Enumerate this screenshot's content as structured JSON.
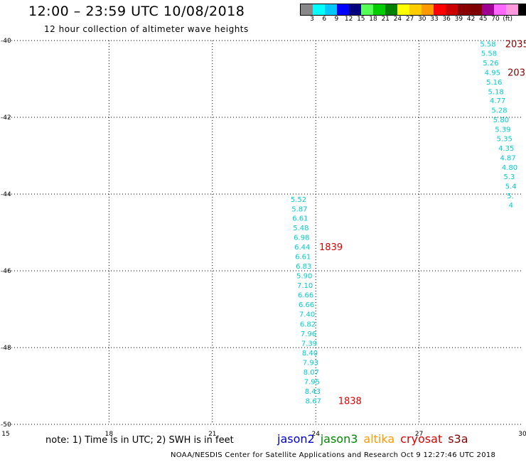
{
  "header": {
    "title": "12:00 – 23:59 UTC 10/08/2018",
    "subtitle": "12 hour collection of altimeter wave heights"
  },
  "legend": {
    "colors": [
      "#888888",
      "#00ffff",
      "#00c8ff",
      "#0000ff",
      "#00007f",
      "#55ff55",
      "#00cc00",
      "#008000",
      "#ffff00",
      "#ffcc00",
      "#ff9900",
      "#ff0000",
      "#cc0000",
      "#880000",
      "#800000",
      "#a00090",
      "#ff66ff",
      "#ff99dd",
      "#000000"
    ],
    "labels": [
      "3",
      "6",
      "9",
      "12",
      "15",
      "18",
      "21",
      "24",
      "27",
      "30",
      "33",
      "36",
      "39",
      "42",
      "45",
      "70",
      "(ft)"
    ]
  },
  "footer": {
    "note": "note:  1) Time is in UTC;  2) SWH is in feet",
    "credit": "NOAA/NESDIS Center for Satellite Applications and Research    Oct  9 12:27:46 UTC 2018",
    "satellites": [
      {
        "name": "jason2",
        "color": "#0000cc"
      },
      {
        "name": "jason3",
        "color": "#008800"
      },
      {
        "name": "altika",
        "color": "#ff9900"
      },
      {
        "name": "cryosat",
        "color": "#dd0000"
      },
      {
        "name": "s3a",
        "color": "#880000"
      }
    ]
  },
  "chart_data": {
    "type": "scatter",
    "xlim": [
      15,
      30
    ],
    "ylim": [
      -50,
      -40
    ],
    "x_ticks": [
      15,
      18,
      21,
      24,
      27,
      30
    ],
    "y_ticks": [
      -40,
      -42,
      -44,
      -46,
      -48,
      -50
    ],
    "x_tick_labels": [
      "15",
      "18",
      "21",
      "24",
      "27",
      "30"
    ],
    "y_tick_labels": [
      "-40",
      "-42",
      "-44",
      "-46",
      "-48",
      "-50"
    ],
    "grid": true,
    "series": [
      {
        "color": "#00cccc",
        "points": [
          {
            "x": 23.27,
            "y": -44.13,
            "label": "5.52"
          },
          {
            "x": 23.3,
            "y": -44.38,
            "label": "5.87"
          },
          {
            "x": 23.32,
            "y": -44.62,
            "label": "6.61"
          },
          {
            "x": 23.34,
            "y": -44.87,
            "label": "5.48"
          },
          {
            "x": 23.36,
            "y": -45.12,
            "label": "6.98"
          },
          {
            "x": 23.38,
            "y": -45.37,
            "label": "6.44"
          },
          {
            "x": 23.4,
            "y": -45.62,
            "label": "6.61"
          },
          {
            "x": 23.42,
            "y": -45.87,
            "label": "6.83"
          },
          {
            "x": 23.44,
            "y": -46.12,
            "label": "5.90"
          },
          {
            "x": 23.46,
            "y": -46.37,
            "label": "7.10"
          },
          {
            "x": 23.48,
            "y": -46.62,
            "label": "6.66"
          },
          {
            "x": 23.5,
            "y": -46.87,
            "label": "6.66"
          },
          {
            "x": 23.52,
            "y": -47.12,
            "label": "7.40"
          },
          {
            "x": 23.54,
            "y": -47.38,
            "label": "6.82"
          },
          {
            "x": 23.56,
            "y": -47.63,
            "label": "7.96"
          },
          {
            "x": 23.58,
            "y": -47.88,
            "label": "7.39"
          },
          {
            "x": 23.6,
            "y": -48.13,
            "label": "8.40"
          },
          {
            "x": 23.62,
            "y": -48.38,
            "label": "7.93"
          },
          {
            "x": 23.64,
            "y": -48.63,
            "label": "8.07"
          },
          {
            "x": 23.66,
            "y": -48.88,
            "label": "7.95"
          },
          {
            "x": 23.68,
            "y": -49.13,
            "label": "8.43"
          },
          {
            "x": 23.7,
            "y": -49.38,
            "label": "8.67"
          },
          {
            "x": 28.77,
            "y": -40.08,
            "label": "5.58"
          },
          {
            "x": 28.8,
            "y": -40.32,
            "label": "5.58"
          },
          {
            "x": 28.85,
            "y": -40.57,
            "label": "5.26"
          },
          {
            "x": 28.9,
            "y": -40.82,
            "label": "4.95"
          },
          {
            "x": 28.95,
            "y": -41.07,
            "label": "5.16"
          },
          {
            "x": 29.0,
            "y": -41.32,
            "label": "5.18"
          },
          {
            "x": 29.05,
            "y": -41.56,
            "label": "4.77"
          },
          {
            "x": 29.1,
            "y": -41.81,
            "label": "5.28"
          },
          {
            "x": 29.15,
            "y": -42.06,
            "label": "5.80"
          },
          {
            "x": 29.2,
            "y": -42.31,
            "label": "5.39"
          },
          {
            "x": 29.25,
            "y": -42.55,
            "label": "5.35"
          },
          {
            "x": 29.3,
            "y": -42.8,
            "label": "4.35"
          },
          {
            "x": 29.35,
            "y": -43.05,
            "label": "4.87"
          },
          {
            "x": 29.4,
            "y": -43.3,
            "label": "4.80"
          },
          {
            "x": 29.45,
            "y": -43.54,
            "label": "5.3"
          },
          {
            "x": 29.5,
            "y": -43.79,
            "label": "5.4"
          },
          {
            "x": 29.55,
            "y": -44.04,
            "label": "5."
          },
          {
            "x": 29.6,
            "y": -44.28,
            "label": "4"
          }
        ]
      }
    ],
    "time_labels": [
      {
        "x": 24.1,
        "y": -45.37,
        "text": "1839",
        "color": "#dd0000"
      },
      {
        "x": 24.65,
        "y": -49.38,
        "text": "1838",
        "color": "#dd0000"
      },
      {
        "x": 29.5,
        "y": -40.08,
        "text": "2035",
        "color": "#880000"
      },
      {
        "x": 29.57,
        "y": -40.82,
        "text": "203",
        "color": "#880000"
      }
    ]
  }
}
